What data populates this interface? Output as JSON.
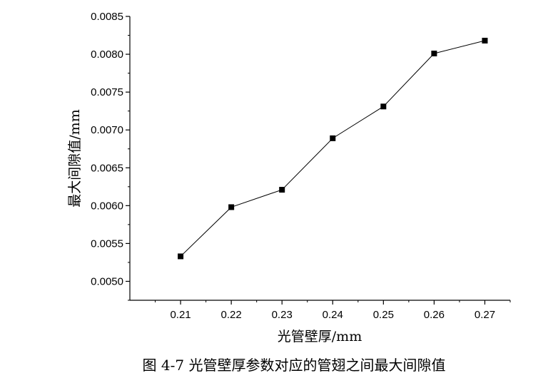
{
  "chart_data": {
    "type": "line",
    "title": "",
    "xlabel": "光管壁厚/mm",
    "ylabel": "最大间隙值/mm",
    "x": [
      0.21,
      0.22,
      0.23,
      0.24,
      0.25,
      0.26,
      0.27
    ],
    "series": [
      {
        "values": [
          0.00533,
          0.00598,
          0.00621,
          0.00689,
          0.00731,
          0.00801,
          0.00818
        ]
      }
    ],
    "xlim": [
      0.2,
      0.275
    ],
    "ylim": [
      0.00475,
      0.0085
    ],
    "xticks": [
      "0.21",
      "0.22",
      "0.23",
      "0.24",
      "0.25",
      "0.26",
      "0.27"
    ],
    "yticks": [
      "0.0050",
      "0.0055",
      "0.0060",
      "0.0065",
      "0.0070",
      "0.0075",
      "0.0080",
      "0.0085"
    ],
    "marker": "square",
    "grid": false,
    "colors": {
      "line": "#000000",
      "marker": "#000000"
    }
  },
  "caption": "图 4-7  光管壁厚参数对应的管翅之间最大间隙值"
}
